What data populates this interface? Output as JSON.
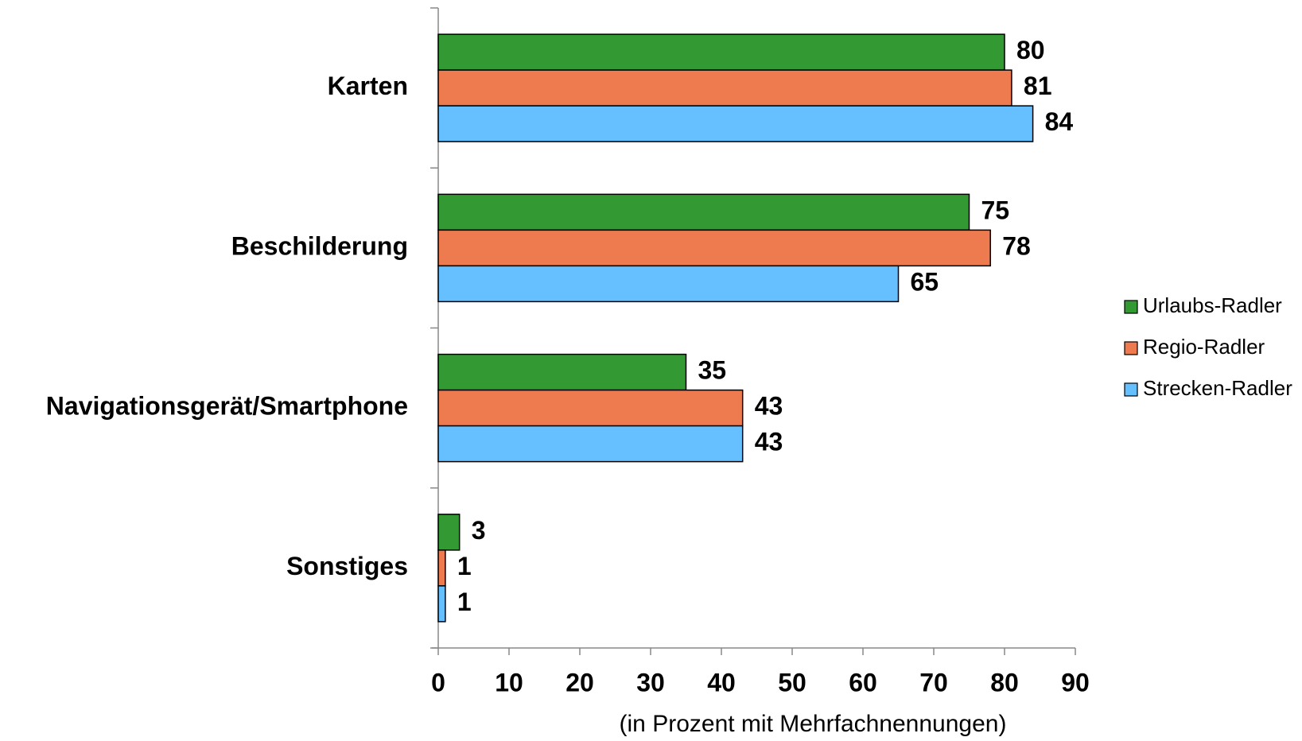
{
  "chart_data": {
    "type": "hbar",
    "xlabel": "(in Prozent mit Mehrfachnennungen)",
    "categories": [
      "Karten",
      "Beschilderung",
      "Navigationsgerät/Smartphone",
      "Sonstiges"
    ],
    "series": [
      {
        "name": "Urlaubs-Radler",
        "color": "#339933",
        "values": [
          80,
          75,
          35,
          3
        ]
      },
      {
        "name": "Regio-Radler",
        "color": "#ee7b4f",
        "values": [
          81,
          78,
          43,
          1
        ]
      },
      {
        "name": "Strecken-Radler",
        "color": "#66bfff",
        "values": [
          84,
          65,
          43,
          1
        ]
      }
    ],
    "xlim": [
      0,
      90
    ],
    "xticks": [
      0,
      10,
      20,
      30,
      40,
      50,
      60,
      70,
      80,
      90
    ],
    "legend": "right",
    "data_labels": true
  }
}
